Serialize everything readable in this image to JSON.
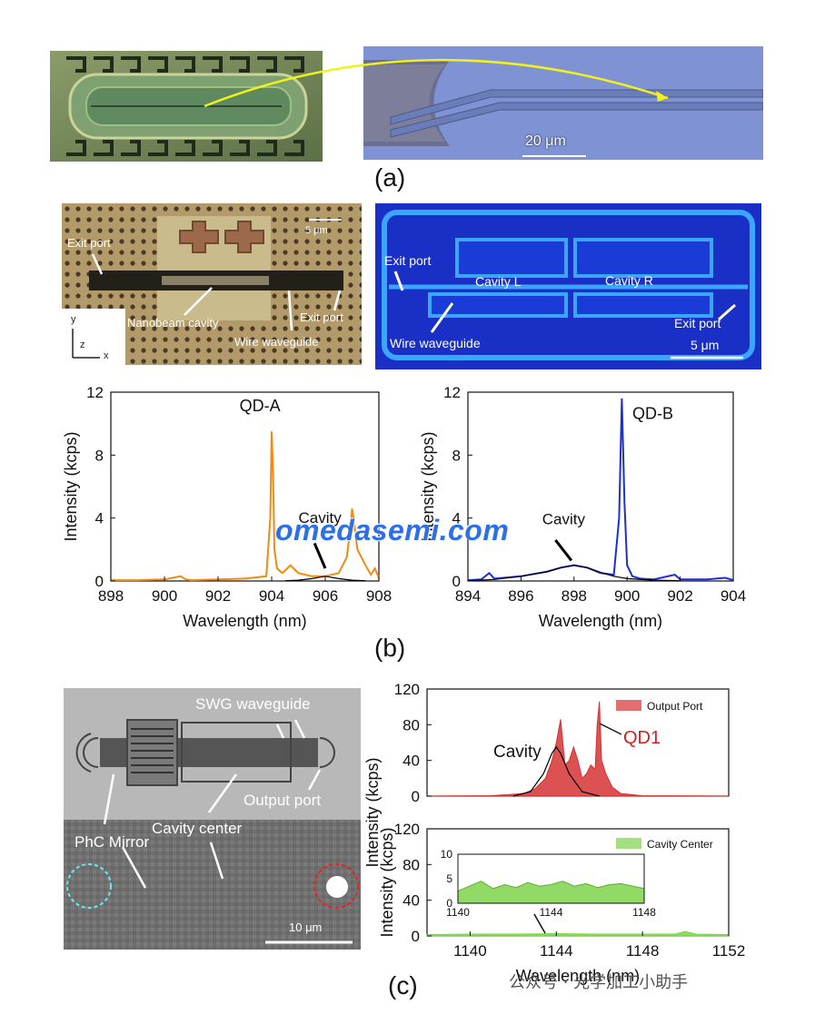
{
  "panel_a": {
    "scale_label": "20 μm",
    "label": "(a)",
    "colors": {
      "chip_bg": "#6f8a5a",
      "blue_bg": "#7c8fd0",
      "arrow": "#f2f21a"
    }
  },
  "panel_b": {
    "label": "(b)",
    "left_image": {
      "exit_port_left": "Exit port",
      "scale": "5 μm",
      "nanobeam_cavity": "Nanobeam cavity",
      "exit_port_right": "Exit port",
      "wire_waveguide": "Wire waveguide",
      "axis_y": "y",
      "axis_z": "z",
      "axis_x": "x"
    },
    "right_image": {
      "exit_port_left": "Exit port",
      "cavity_l": "Cavity L",
      "cavity_r": "Cavity R",
      "exit_port_right": "Exit port",
      "wire_waveguide": "Wire waveguide",
      "scale": "5 μm"
    }
  },
  "panel_c": {
    "label": "(c)",
    "image": {
      "swg": "SWG waveguide",
      "output_port": "Output port",
      "cavity_center": "Cavity center",
      "phc_mirror": "PhC Mirror",
      "scale": "10 μm"
    }
  },
  "watermark": "omedasemi.com",
  "wechat": "公众号 · 光学加工小助手",
  "chart_data": [
    {
      "type": "line",
      "id": "b-left",
      "xlabel": "Wavelength (nm)",
      "ylabel": "Intensity (kcps)",
      "xlim": [
        898,
        908
      ],
      "ylim": [
        0,
        12
      ],
      "xticks": [
        "898",
        "900",
        "902",
        "904",
        "906",
        "908"
      ],
      "yticks": [
        "0",
        "4",
        "8",
        "12"
      ],
      "annotations": [
        "QD-A",
        "Cavity"
      ],
      "series": [
        {
          "color": "#f08a12",
          "x": [
            898,
            899,
            900,
            900.6,
            900.8,
            901,
            902,
            903,
            903.8,
            903.95,
            904.0,
            904.05,
            904.1,
            904.2,
            904.4,
            904.7,
            905,
            905.5,
            906,
            906.5,
            906.8,
            906.95,
            907.0,
            907.05,
            907.2,
            907.5,
            907.7,
            907.85,
            908
          ],
          "y": [
            0.05,
            0.05,
            0.1,
            0.3,
            0.1,
            0.05,
            0.1,
            0.15,
            0.3,
            4.0,
            9.5,
            7.0,
            2.0,
            0.8,
            0.5,
            1.0,
            0.5,
            0.3,
            0.3,
            0.5,
            1.5,
            3.5,
            4.6,
            4.0,
            2.0,
            1.0,
            0.4,
            0.8,
            0.2
          ]
        },
        {
          "color": "#000000",
          "x": [
            904.5,
            905,
            905.5,
            906,
            906.5,
            907,
            907.5
          ],
          "y": [
            0.02,
            0.05,
            0.15,
            0.3,
            0.15,
            0.05,
            0.02
          ]
        }
      ]
    },
    {
      "type": "line",
      "id": "b-right",
      "xlabel": "Wavelength (nm)",
      "ylabel": "Intensity (kcps)",
      "xlim": [
        894,
        904
      ],
      "ylim": [
        0,
        12
      ],
      "xticks": [
        "894",
        "896",
        "898",
        "900",
        "902",
        "904"
      ],
      "yticks": [
        "0",
        "4",
        "8",
        "12"
      ],
      "annotations": [
        "QD-B",
        "Cavity"
      ],
      "series": [
        {
          "color": "#1d2fd6",
          "x": [
            894,
            894.5,
            894.8,
            895,
            896,
            897,
            897.5,
            898,
            898.5,
            899,
            899.5,
            899.7,
            899.8,
            899.9,
            900.0,
            900.2,
            900.5,
            901,
            901.8,
            902,
            903,
            903.7,
            904
          ],
          "y": [
            0.05,
            0.1,
            0.5,
            0.15,
            0.3,
            0.6,
            0.85,
            1.0,
            0.85,
            0.5,
            0.4,
            4.0,
            11.6,
            5.0,
            1.0,
            0.3,
            0.15,
            0.1,
            0.4,
            0.1,
            0.1,
            0.2,
            0.05
          ]
        },
        {
          "color": "#000000",
          "x": [
            894,
            895,
            896,
            897,
            897.5,
            898,
            898.5,
            899,
            899.5,
            900,
            901,
            902
          ],
          "y": [
            0.02,
            0.1,
            0.3,
            0.6,
            0.85,
            1.0,
            0.85,
            0.55,
            0.3,
            0.15,
            0.05,
            0.02
          ]
        }
      ]
    },
    {
      "type": "area",
      "id": "c-top",
      "xlabel": "",
      "ylabel": "Intensity (kcps)",
      "xlim": [
        1138,
        1152
      ],
      "ylim": [
        0,
        120
      ],
      "xticks": [],
      "yticks": [
        "0",
        "40",
        "80",
        "120"
      ],
      "legend": "Output Port",
      "annotations": [
        "Cavity",
        "QD1"
      ],
      "series": [
        {
          "name": "Output Port",
          "color": "#d63232",
          "x": [
            1138,
            1141,
            1142.5,
            1143,
            1143.5,
            1143.8,
            1144.0,
            1144.2,
            1144.4,
            1144.6,
            1144.8,
            1145.0,
            1145.2,
            1145.4,
            1145.6,
            1145.8,
            1145.9,
            1146.0,
            1146.1,
            1146.3,
            1146.6,
            1147,
            1148,
            1152
          ],
          "y": [
            0,
            0.5,
            3,
            8,
            20,
            40,
            60,
            86,
            35,
            40,
            55,
            40,
            20,
            25,
            35,
            30,
            80,
            106,
            40,
            25,
            10,
            3,
            0.5,
            0
          ]
        },
        {
          "color": "#000000",
          "x": [
            1142,
            1142.8,
            1143.4,
            1143.8,
            1144.0,
            1144.2,
            1144.6,
            1145.2,
            1146
          ],
          "y": [
            0,
            5,
            25,
            48,
            55,
            48,
            25,
            5,
            0
          ]
        }
      ]
    },
    {
      "type": "area",
      "id": "c-bottom",
      "xlabel": "Wavelength (nm)",
      "ylabel": "Intensity (kcps)",
      "xlim": [
        1138,
        1152
      ],
      "ylim": [
        0,
        120
      ],
      "xticks": [
        "1140",
        "1144",
        "1148",
        "1152"
      ],
      "yticks": [
        "0",
        "40",
        "80",
        "120"
      ],
      "legend": "Cavity Center",
      "series": [
        {
          "name": "Cavity Center",
          "color": "#7ed34a",
          "x": [
            1138,
            1140,
            1142,
            1144,
            1146,
            1148,
            1149.5,
            1150,
            1150.5,
            1152
          ],
          "y": [
            1.5,
            2,
            2,
            2.5,
            2,
            2,
            2,
            5,
            2,
            1.5
          ]
        }
      ],
      "inset": {
        "xlim": [
          1140,
          1148
        ],
        "ylim": [
          0,
          10
        ],
        "xticks": [
          "1140",
          "1144",
          "1148"
        ],
        "yticks": [
          "0",
          "5",
          "10"
        ],
        "x": [
          1140,
          1140.5,
          1141,
          1141.5,
          1142,
          1142.5,
          1143,
          1143.5,
          1144,
          1144.5,
          1145,
          1145.5,
          1146,
          1146.5,
          1147,
          1147.5,
          1148
        ],
        "y": [
          2.5,
          3.5,
          4.5,
          3,
          3.8,
          3.2,
          4.2,
          3.5,
          3.8,
          4.5,
          3.5,
          4.0,
          3.2,
          3.8,
          4.0,
          3.5,
          3.0
        ]
      }
    }
  ]
}
